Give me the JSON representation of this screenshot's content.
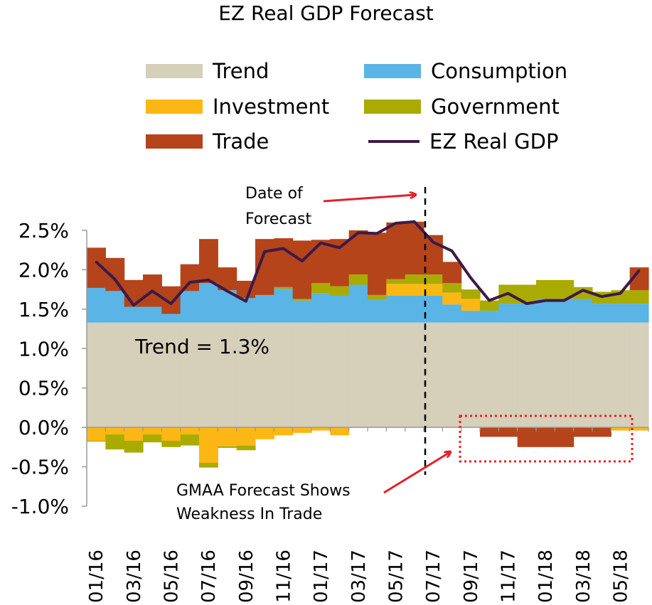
{
  "chart_data": {
    "type": "bar",
    "title": "EZ Real GDP Forecast",
    "stacked": true,
    "x": [
      "01/16",
      "02/16",
      "03/16",
      "04/16",
      "05/16",
      "06/16",
      "07/16",
      "08/16",
      "09/16",
      "10/16",
      "11/16",
      "12/16",
      "01/17",
      "02/17",
      "03/17",
      "04/17",
      "05/17",
      "06/17",
      "07/17",
      "08/17",
      "09/17",
      "10/17",
      "11/17",
      "12/17",
      "01/18",
      "02/18",
      "03/18",
      "04/18",
      "05/18",
      "06/18"
    ],
    "x_tick_labels": [
      "01/16",
      "03/16",
      "05/16",
      "07/16",
      "09/16",
      "11/16",
      "01/17",
      "03/17",
      "05/17",
      "07/17",
      "09/17",
      "11/17",
      "01/18",
      "03/18",
      "05/18"
    ],
    "ylim": [
      -1.0,
      2.5
    ],
    "y_ticks": [
      "2.5%",
      "2.0%",
      "1.5%",
      "1.0%",
      "0.5%",
      "0.0%",
      "-0.5%",
      "-1.0%"
    ],
    "y_tick_values": [
      2.5,
      2.0,
      1.5,
      1.0,
      0.5,
      0.0,
      -0.5,
      -1.0
    ],
    "series": [
      {
        "name": "Trend",
        "kind": "bar",
        "color": "#d6cfb9",
        "values": [
          1.33,
          1.33,
          1.33,
          1.33,
          1.33,
          1.33,
          1.33,
          1.33,
          1.33,
          1.33,
          1.33,
          1.33,
          1.33,
          1.33,
          1.33,
          1.33,
          1.33,
          1.33,
          1.33,
          1.33,
          1.33,
          1.33,
          1.33,
          1.33,
          1.33,
          1.33,
          1.33,
          1.33,
          1.33,
          1.33
        ]
      },
      {
        "name": "Consumption",
        "kind": "bar",
        "color": "#5ab4e5",
        "values": [
          0.44,
          0.4,
          0.2,
          0.2,
          0.11,
          0.4,
          0.5,
          0.41,
          0.31,
          0.35,
          0.43,
          0.28,
          0.37,
          0.34,
          0.48,
          0.29,
          0.34,
          0.34,
          0.34,
          0.23,
          0.15,
          0.15,
          0.24,
          0.24,
          0.3,
          0.3,
          0.3,
          0.24,
          0.24,
          0.24
        ]
      },
      {
        "name": "Investment",
        "kind": "bar",
        "color": "#fdb714",
        "values": [
          -0.17,
          -0.09,
          -0.17,
          -0.09,
          -0.17,
          -0.09,
          -0.45,
          -0.24,
          -0.23,
          -0.15,
          -0.1,
          -0.07,
          -0.04,
          -0.1,
          0.0,
          0.0,
          0.15,
          0.15,
          0.15,
          0.15,
          0.15,
          0.0,
          0.0,
          0.0,
          0.0,
          0.0,
          0.0,
          0.0,
          -0.04,
          -0.04
        ]
      },
      {
        "name": "Government",
        "kind": "bar",
        "color": "#a9ab00",
        "values": [
          -0.01,
          -0.19,
          -0.15,
          -0.1,
          -0.08,
          -0.14,
          -0.06,
          -0.02,
          -0.06,
          0.0,
          0.02,
          0.02,
          0.13,
          0.12,
          0.13,
          0.06,
          0.06,
          0.12,
          0.12,
          0.12,
          0.12,
          0.13,
          0.24,
          0.24,
          0.24,
          0.24,
          0.15,
          0.15,
          0.17,
          0.17
        ]
      },
      {
        "name": "Trade",
        "kind": "bar",
        "color": "#b5441b",
        "values": [
          0.51,
          0.42,
          0.34,
          0.41,
          0.35,
          0.34,
          0.56,
          0.29,
          0.22,
          0.71,
          0.62,
          0.74,
          0.55,
          0.6,
          0.56,
          0.79,
          0.72,
          0.67,
          0.5,
          0.27,
          0.0,
          -0.12,
          -0.12,
          -0.25,
          -0.25,
          -0.25,
          -0.12,
          -0.12,
          0.0,
          0.29
        ]
      },
      {
        "name": "EZ Real GDP",
        "kind": "line",
        "color": "#3d1a47",
        "values": [
          2.1,
          1.88,
          1.55,
          1.73,
          1.57,
          1.84,
          1.87,
          1.73,
          1.6,
          2.23,
          2.27,
          2.11,
          2.34,
          2.28,
          2.47,
          2.46,
          2.59,
          2.61,
          2.35,
          2.24,
          1.9,
          1.61,
          1.7,
          1.57,
          1.61,
          1.61,
          1.74,
          1.66,
          1.7,
          1.99
        ]
      }
    ],
    "annotations": [
      {
        "text": "Trend = 1.3%"
      },
      {
        "text": "Date of\nForecast"
      },
      {
        "text": "GMAA Forecast Shows\nWeakness In Trade"
      }
    ]
  }
}
